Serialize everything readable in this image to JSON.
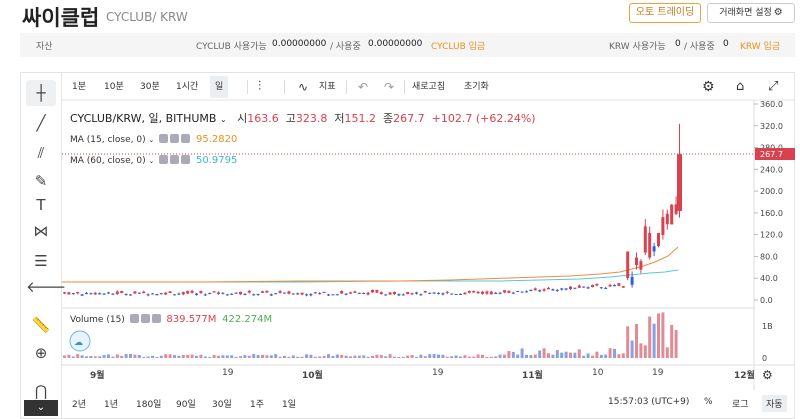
{
  "header": {
    "coin_name": "싸이클럽",
    "pair": "CYCLUB/ KRW",
    "auto_trade_label": "오토 트레이딩",
    "settings_label": "거래화면 설정"
  },
  "asset_bar": {
    "label": "자산",
    "cyclub_available_label": "CYCLUB 사용가능",
    "cyclub_available": "0.00000000",
    "cyclub_in_use_label": "/ 사용중",
    "cyclub_in_use": "0.00000000",
    "cyclub_deposit": "CYCLUB 입금",
    "krw_available_label": "KRW 사용가능",
    "krw_available": "0",
    "krw_in_use_label": "/ 사용중",
    "krw_in_use": "0",
    "krw_deposit": "KRW 입금"
  },
  "toolbar": {
    "intervals": [
      "1분",
      "10분",
      "30분",
      "1시간",
      "일"
    ],
    "active_interval": "일",
    "indicator_label": "지표",
    "save_label": "새로고침",
    "reset_label": "초기화"
  },
  "legend": {
    "symbol": "CYCLUB/KRW, 일, BITHUMB",
    "open_label": "시",
    "open": "163.6",
    "high_label": "고",
    "high": "323.8",
    "low_label": "저",
    "low": "151.2",
    "close_label": "종",
    "close": "267.7",
    "change": "+102.7 (+62.24%)",
    "ma15_label": "MA (15, close, 0)",
    "ma15_value": "95.2820",
    "ma60_label": "MA (60, close, 0)",
    "ma60_value": "50.9795",
    "volume_label": "Volume (15)",
    "volume_value": "839.577M",
    "volume_ma_value": "422.274M"
  },
  "price_axis": {
    "ticks": [
      "360.0",
      "320.0",
      "280.0",
      "240.0",
      "200.0",
      "160.0",
      "120.0",
      "80.0",
      "40.0",
      "0.0"
    ],
    "current_price": "267.7"
  },
  "volume_axis": {
    "ticks": [
      "1B",
      "0"
    ]
  },
  "x_axis": {
    "labels": [
      {
        "text": "9월",
        "bold": true
      },
      {
        "text": "19",
        "bold": false
      },
      {
        "text": "10월",
        "bold": true
      },
      {
        "text": "19",
        "bold": false
      },
      {
        "text": "11월",
        "bold": true
      },
      {
        "text": "10",
        "bold": false
      },
      {
        "text": "19",
        "bold": false
      },
      {
        "text": "12월",
        "bold": true
      }
    ]
  },
  "bottom_bar": {
    "ranges": [
      "2년",
      "1년",
      "180일",
      "90일",
      "30일",
      "1주",
      "1일"
    ],
    "time": "15:57:03 (UTC+9)",
    "percent": "%",
    "log": "로그",
    "auto": "자동"
  },
  "colors": {
    "up": "#d9414f",
    "down": "#3a5fcd",
    "ma15": "#f08a3e",
    "ma60": "#5ac8d8",
    "orange": "#e7921e"
  }
}
